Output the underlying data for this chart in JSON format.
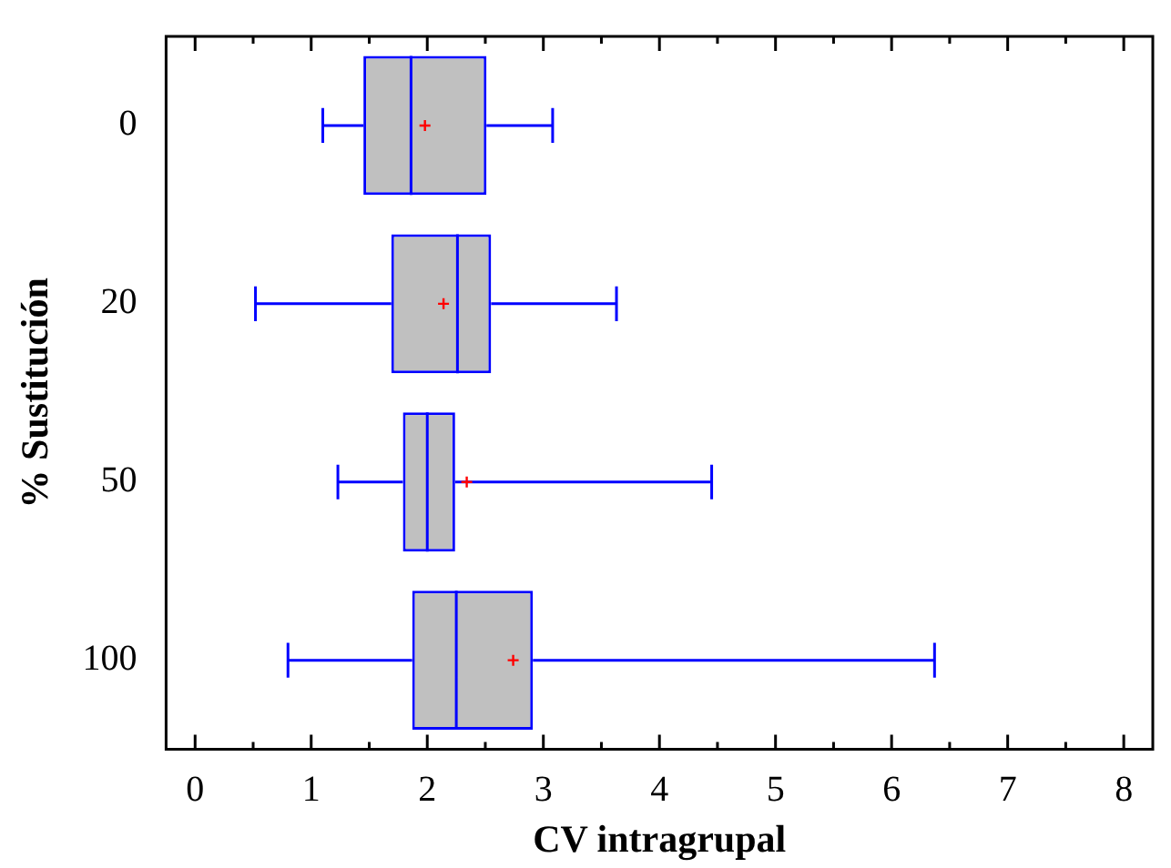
{
  "chart_data": {
    "type": "box",
    "orientation": "horizontal",
    "xlabel": "CV intragrupal",
    "ylabel": "% Sustitución",
    "categories": [
      "0",
      "20",
      "50",
      "100"
    ],
    "color": "#0000ff",
    "boxes": [
      {
        "low": 1.1,
        "q1": 1.45,
        "median": 1.86,
        "q3": 2.51,
        "high": 3.08,
        "mean": 1.98
      },
      {
        "low": 0.52,
        "q1": 1.69,
        "median": 2.26,
        "q3": 2.55,
        "high": 3.63,
        "mean": 2.14
      },
      {
        "low": 1.23,
        "q1": 1.79,
        "median": 2.0,
        "q3": 2.24,
        "high": 4.45,
        "mean": 2.34
      },
      {
        "low": 0.8,
        "q1": 1.87,
        "median": 2.25,
        "q3": 2.91,
        "high": 6.37,
        "mean": 2.74
      }
    ],
    "xlim": [
      -0.25,
      8.25
    ],
    "xticks": [
      0,
      {
        "value": 0.5,
        "label": null
      },
      1,
      {
        "value": 1.5,
        "label": null
      },
      2,
      {
        "value": 2.5,
        "label": null
      },
      3,
      {
        "value": 3.5,
        "label": null
      },
      4,
      {
        "value": 4.5,
        "label": null
      },
      5,
      {
        "value": 5.5,
        "label": null
      },
      6,
      {
        "value": 6.5,
        "label": null
      },
      7,
      {
        "value": 7.5,
        "label": null
      },
      8
    ]
  }
}
